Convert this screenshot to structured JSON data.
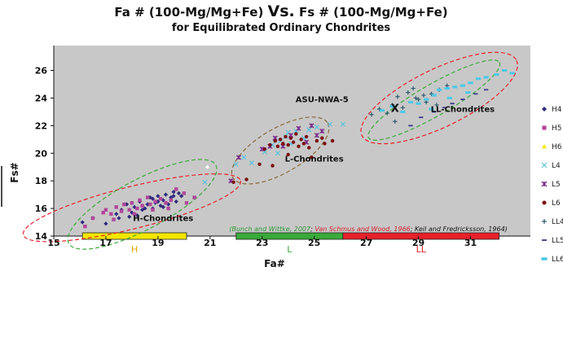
{
  "chart_data": {
    "type": "scatter",
    "title_parts": [
      {
        "text": "Fa # (100-Mg/Mg+Fe) ",
        "big": false
      },
      {
        "text": "Vs.",
        "big": true
      },
      {
        "text": " Fs # (100-Mg/Mg+Fe)",
        "big": false
      }
    ],
    "subtitle": "for Equilibrated Ordinary Chondrites",
    "xlabel": "Fa#",
    "ylabel": "Fs#",
    "xlim": [
      15,
      33.3
    ],
    "ylim": [
      14,
      27.8
    ],
    "x_ticks": [
      15,
      17,
      19,
      21,
      23,
      25,
      27,
      29,
      31
    ],
    "y_ticks": [
      14,
      16,
      18,
      20,
      22,
      24,
      26
    ],
    "grid": false,
    "legend_position": "right",
    "series": [
      {
        "name": "H4",
        "color": "#2e2a7a",
        "marker": "diamond",
        "points": [
          [
            16.1,
            15.0
          ],
          [
            16.5,
            15.3
          ],
          [
            17.0,
            14.9
          ],
          [
            17.4,
            15.6
          ],
          [
            17.6,
            15.9
          ],
          [
            17.8,
            16.3
          ],
          [
            18.0,
            15.7
          ],
          [
            18.1,
            16.1
          ],
          [
            18.3,
            16.5
          ],
          [
            18.4,
            15.9
          ],
          [
            18.6,
            16.3
          ],
          [
            18.7,
            16.8
          ],
          [
            18.8,
            16.0
          ],
          [
            18.9,
            16.4
          ],
          [
            19.0,
            16.9
          ],
          [
            19.1,
            16.2
          ],
          [
            19.2,
            16.6
          ],
          [
            19.3,
            17.0
          ],
          [
            19.4,
            16.3
          ],
          [
            19.5,
            16.8
          ],
          [
            19.6,
            17.2
          ],
          [
            19.7,
            16.5
          ],
          [
            19.8,
            17.1
          ],
          [
            19.9,
            16.9
          ],
          [
            17.5,
            15.3
          ],
          [
            18.2,
            15.5
          ],
          [
            18.5,
            16.0
          ],
          [
            19.0,
            16.5
          ],
          [
            19.6,
            16.9
          ],
          [
            17.9,
            15.4
          ],
          [
            18.8,
            16.7
          ],
          [
            19.2,
            16.1
          ]
        ]
      },
      {
        "name": "H5",
        "color": "#b0479a",
        "marker": "square",
        "points": [
          [
            16.2,
            14.7
          ],
          [
            16.5,
            15.3
          ],
          [
            16.9,
            15.7
          ],
          [
            17.0,
            15.9
          ],
          [
            17.2,
            15.6
          ],
          [
            17.4,
            16.1
          ],
          [
            17.6,
            15.8
          ],
          [
            17.7,
            16.3
          ],
          [
            17.9,
            15.9
          ],
          [
            18.0,
            16.4
          ],
          [
            18.2,
            16.0
          ],
          [
            18.3,
            16.6
          ],
          [
            18.4,
            16.2
          ],
          [
            18.6,
            16.8
          ],
          [
            18.7,
            16.3
          ],
          [
            18.9,
            16.5
          ],
          [
            19.1,
            16.7
          ],
          [
            19.3,
            16.4
          ],
          [
            19.5,
            16.6
          ],
          [
            19.7,
            17.4
          ],
          [
            20.0,
            17.1
          ],
          [
            20.4,
            16.8
          ],
          [
            17.3,
            15.2
          ],
          [
            18.1,
            15.6
          ],
          [
            18.8,
            15.9
          ],
          [
            19.4,
            16.0
          ],
          [
            20.1,
            16.4
          ]
        ]
      },
      {
        "name": "H6",
        "color": "#f5e600",
        "marker": "triangle",
        "points": []
      },
      {
        "name": "L4",
        "color": "#59c3dd",
        "marker": "x",
        "points": [
          [
            20.8,
            17.9
          ],
          [
            22.0,
            19.2
          ],
          [
            22.3,
            19.7
          ],
          [
            22.6,
            19.3
          ],
          [
            23.1,
            20.1
          ],
          [
            23.4,
            20.6
          ],
          [
            23.6,
            20.0
          ],
          [
            23.9,
            21.2
          ],
          [
            24.1,
            20.7
          ],
          [
            24.3,
            21.6
          ],
          [
            24.6,
            21.1
          ],
          [
            24.8,
            21.7
          ],
          [
            25.1,
            21.9
          ],
          [
            25.6,
            22.1
          ],
          [
            26.1,
            22.1
          ],
          [
            24.0,
            21.5
          ],
          [
            23.7,
            20.9
          ]
        ]
      },
      {
        "name": "L5",
        "color": "#7b2f8a",
        "marker": "xstar",
        "points": [
          [
            21.8,
            18.0
          ],
          [
            22.1,
            19.7
          ],
          [
            23.0,
            20.3
          ],
          [
            23.5,
            21.1
          ],
          [
            23.8,
            20.5
          ],
          [
            24.1,
            21.3
          ],
          [
            24.4,
            21.8
          ],
          [
            24.7,
            20.8
          ],
          [
            25.1,
            21.3
          ],
          [
            25.3,
            21.6
          ],
          [
            23.3,
            20.5
          ],
          [
            24.9,
            22.0
          ]
        ]
      },
      {
        "name": "L6",
        "color": "#7a1012",
        "marker": "circle",
        "points": [
          [
            21.9,
            17.9
          ],
          [
            22.4,
            18.1
          ],
          [
            22.9,
            19.2
          ],
          [
            23.1,
            20.3
          ],
          [
            23.3,
            20.6
          ],
          [
            23.5,
            20.9
          ],
          [
            23.6,
            20.5
          ],
          [
            23.7,
            21.0
          ],
          [
            23.8,
            20.7
          ],
          [
            23.9,
            21.2
          ],
          [
            24.0,
            20.6
          ],
          [
            24.1,
            21.1
          ],
          [
            24.2,
            20.8
          ],
          [
            24.3,
            21.4
          ],
          [
            24.4,
            20.5
          ],
          [
            24.5,
            21.0
          ],
          [
            24.6,
            20.7
          ],
          [
            24.7,
            21.2
          ],
          [
            24.8,
            20.4
          ],
          [
            25.1,
            20.9
          ],
          [
            25.4,
            20.7
          ],
          [
            25.7,
            20.9
          ],
          [
            23.4,
            19.1
          ],
          [
            24.0,
            19.9
          ],
          [
            24.9,
            19.7
          ],
          [
            25.3,
            21.1
          ]
        ]
      },
      {
        "name": "LL4",
        "color": "#2a5a6e",
        "marker": "plus",
        "points": [
          [
            27.2,
            22.8
          ],
          [
            27.5,
            23.2
          ],
          [
            27.8,
            22.9
          ],
          [
            28.0,
            23.5
          ],
          [
            28.2,
            24.1
          ],
          [
            28.4,
            23.3
          ],
          [
            28.6,
            24.4
          ],
          [
            28.8,
            24.7
          ],
          [
            29.0,
            23.9
          ],
          [
            29.2,
            24.2
          ],
          [
            29.3,
            23.7
          ],
          [
            29.5,
            24.3
          ],
          [
            29.7,
            23.5
          ],
          [
            28.1,
            22.3
          ],
          [
            29.8,
            24.6
          ],
          [
            30.1,
            24.9
          ],
          [
            28.9,
            24.0
          ]
        ]
      },
      {
        "name": "LL5",
        "color": "#3a3a8a",
        "marker": "dash",
        "points": [
          [
            28.7,
            22.0
          ],
          [
            29.1,
            22.6
          ],
          [
            29.6,
            23.0
          ],
          [
            30.0,
            23.3
          ],
          [
            30.3,
            23.6
          ],
          [
            30.7,
            23.9
          ],
          [
            31.2,
            24.3
          ],
          [
            31.6,
            24.6
          ]
        ]
      },
      {
        "name": "LL6",
        "color": "#4fc8e6",
        "marker": "rect",
        "points": [
          [
            27.6,
            23.1
          ],
          [
            28.0,
            23.4
          ],
          [
            28.4,
            23.0
          ],
          [
            28.7,
            23.7
          ],
          [
            29.0,
            23.6
          ],
          [
            29.3,
            23.9
          ],
          [
            29.6,
            24.2
          ],
          [
            29.8,
            24.6
          ],
          [
            30.1,
            24.7
          ],
          [
            30.4,
            24.8
          ],
          [
            30.7,
            24.9
          ],
          [
            31.0,
            25.1
          ],
          [
            31.3,
            25.4
          ],
          [
            31.6,
            25.5
          ],
          [
            32.0,
            25.7
          ],
          [
            32.3,
            26.0
          ],
          [
            32.6,
            25.8
          ],
          [
            30.2,
            24.0
          ],
          [
            29.5,
            23.2
          ],
          [
            30.9,
            24.4
          ]
        ]
      }
    ],
    "ellipses": [
      {
        "cx": 18.0,
        "cy": 16.05,
        "rx": 4.3,
        "ry": 0.8,
        "angle": 14,
        "color": "#e8212a"
      },
      {
        "cx": 18.4,
        "cy": 16.3,
        "rx": 3.2,
        "ry": 0.95,
        "angle": 28,
        "color": "#3aaa3a"
      },
      {
        "cx": 23.7,
        "cy": 20.2,
        "rx": 2.1,
        "ry": 0.85,
        "angle": 30,
        "color": "#8a6a3a"
      },
      {
        "cx": 29.6,
        "cy": 23.85,
        "rx": 2.9,
        "ry": 0.6,
        "angle": 30,
        "color": "#3aaa3a"
      },
      {
        "cx": 29.8,
        "cy": 24.0,
        "rx": 3.3,
        "ry": 1.1,
        "angle": 26,
        "color": "#e8212a"
      }
    ],
    "open_diamond": {
      "x": 20.9,
      "y": 19.0,
      "color": "#ffffff"
    },
    "x_marker": {
      "x": 28.1,
      "y": 23.3,
      "symbol": "X"
    },
    "annotations": [
      {
        "text": "H-Chondrites",
        "x": 19.2,
        "y": 15.1
      },
      {
        "text": "L-Chondrites",
        "x": 25.0,
        "y": 19.4
      },
      {
        "text": "ASU-NWA-5",
        "x": 25.3,
        "y": 23.7
      },
      {
        "text": "LL-Chondrites",
        "x": 30.7,
        "y": 23.0
      }
    ],
    "citation": [
      {
        "text": "(Bunch and Wittke, 2007",
        "color": "#2e9a36"
      },
      {
        "text": "; ",
        "color": "#111111"
      },
      {
        "text": "Van Schmus and Wood, 1966",
        "color": "#d8202a"
      },
      {
        "text": "; Keil and Fredricksson, 1964)",
        "color": "#111111"
      }
    ],
    "citation_pos": {
      "x": 27.1,
      "y": 14.35
    },
    "bands": [
      {
        "label": "H",
        "from": 16.1,
        "to": 20.1,
        "color": "#f5e600",
        "label_color": "#e6a800"
      },
      {
        "label": "L",
        "from": 22.0,
        "to": 26.1,
        "color": "#3aaa3a",
        "label_color": "#3aaa3a"
      },
      {
        "label": "LL",
        "from": 26.1,
        "to": 32.1,
        "color": "#e8212a",
        "label_color": "#d8202a"
      }
    ]
  }
}
